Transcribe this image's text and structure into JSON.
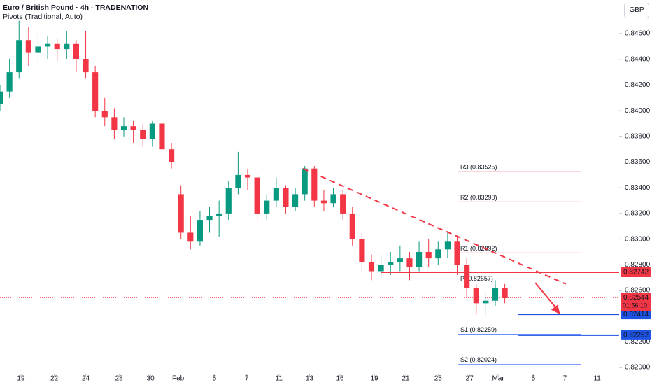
{
  "chart_data": {
    "type": "candlestick",
    "title": "Euro / British Pound · 4h · TRADENATION",
    "indicator": "Pivots (Traditional, Auto)",
    "currency": "GBP",
    "up_color": "#089981",
    "down_color": "#f23645",
    "xlim": [
      0,
      65
    ],
    "ylim": [
      0.81946,
      0.84862
    ],
    "xticks": [
      {
        "value": 2.2,
        "label": "19"
      },
      {
        "value": 5.7,
        "label": "22"
      },
      {
        "value": 9,
        "label": "24"
      },
      {
        "value": 12.5,
        "label": "28"
      },
      {
        "value": 15.8,
        "label": "30"
      },
      {
        "value": 18.7,
        "label": "Feb"
      },
      {
        "value": 22.5,
        "label": "5"
      },
      {
        "value": 25.9,
        "label": "7"
      },
      {
        "value": 29.3,
        "label": "11"
      },
      {
        "value": 32.5,
        "label": "13"
      },
      {
        "value": 35.7,
        "label": "16"
      },
      {
        "value": 39.3,
        "label": "19"
      },
      {
        "value": 42.6,
        "label": "21"
      },
      {
        "value": 46,
        "label": "25"
      },
      {
        "value": 49.3,
        "label": "27"
      },
      {
        "value": 52.3,
        "label": "Mar"
      },
      {
        "value": 56,
        "label": "5"
      },
      {
        "value": 59.3,
        "label": "7"
      },
      {
        "value": 62.7,
        "label": "11"
      }
    ],
    "yticks": [
      {
        "value": 0.846,
        "label": "0.84600"
      },
      {
        "value": 0.844,
        "label": "0.84400"
      },
      {
        "value": 0.842,
        "label": "0.84200"
      },
      {
        "value": 0.84,
        "label": "0.84000"
      },
      {
        "value": 0.838,
        "label": "0.83800"
      },
      {
        "value": 0.836,
        "label": "0.83600"
      },
      {
        "value": 0.834,
        "label": "0.83400"
      },
      {
        "value": 0.832,
        "label": "0.83200"
      },
      {
        "value": 0.83,
        "label": "0.83000"
      },
      {
        "value": 0.828,
        "label": "0.82800"
      },
      {
        "value": 0.826,
        "label": "0.82600"
      },
      {
        "value": 0.822,
        "label": "0.82200"
      },
      {
        "value": 0.82,
        "label": "0.82000"
      }
    ],
    "candles": [
      [
        0.8405,
        0.842,
        0.84,
        0.8415
      ],
      [
        0.8415,
        0.844,
        0.841,
        0.843
      ],
      [
        0.843,
        0.847,
        0.8425,
        0.8455
      ],
      [
        0.8455,
        0.8465,
        0.8435,
        0.8445
      ],
      [
        0.8445,
        0.8462,
        0.8438,
        0.845
      ],
      [
        0.845,
        0.8458,
        0.844,
        0.8452
      ],
      [
        0.8452,
        0.8456,
        0.8438,
        0.8448
      ],
      [
        0.8448,
        0.8462,
        0.844,
        0.8452
      ],
      [
        0.8452,
        0.8455,
        0.843,
        0.844
      ],
      [
        0.844,
        0.8462,
        0.8425,
        0.843
      ],
      [
        0.843,
        0.8435,
        0.8395,
        0.84
      ],
      [
        0.84,
        0.841,
        0.8388,
        0.8395
      ],
      [
        0.8395,
        0.8402,
        0.8378,
        0.8385
      ],
      [
        0.8385,
        0.8395,
        0.838,
        0.8388
      ],
      [
        0.8388,
        0.8392,
        0.8375,
        0.8385
      ],
      [
        0.8385,
        0.839,
        0.8372,
        0.8378
      ],
      [
        0.8378,
        0.8392,
        0.8372,
        0.839
      ],
      [
        0.839,
        0.8392,
        0.8365,
        0.837
      ],
      [
        0.837,
        0.8375,
        0.8355,
        0.836
      ],
      [
        0.8335,
        0.8342,
        0.83,
        0.8305
      ],
      [
        0.8305,
        0.8318,
        0.8292,
        0.8298
      ],
      [
        0.8298,
        0.8322,
        0.8295,
        0.8315
      ],
      [
        0.8315,
        0.8325,
        0.8305,
        0.8318
      ],
      [
        0.8318,
        0.833,
        0.8302,
        0.832
      ],
      [
        0.832,
        0.8345,
        0.8315,
        0.834
      ],
      [
        0.834,
        0.8368,
        0.8335,
        0.835
      ],
      [
        0.835,
        0.8355,
        0.8338,
        0.8348
      ],
      [
        0.8348,
        0.835,
        0.8315,
        0.832
      ],
      [
        0.832,
        0.8335,
        0.8315,
        0.833
      ],
      [
        0.833,
        0.8348,
        0.8325,
        0.834
      ],
      [
        0.834,
        0.8342,
        0.832,
        0.8325
      ],
      [
        0.8325,
        0.834,
        0.8322,
        0.8335
      ],
      [
        0.8335,
        0.8357,
        0.833,
        0.8355
      ],
      [
        0.8355,
        0.8357,
        0.8325,
        0.833
      ],
      [
        0.833,
        0.8338,
        0.8322,
        0.8328
      ],
      [
        0.8328,
        0.834,
        0.8325,
        0.8335
      ],
      [
        0.8335,
        0.8338,
        0.8315,
        0.832
      ],
      [
        0.832,
        0.8325,
        0.8295,
        0.83
      ],
      [
        0.83,
        0.8305,
        0.8275,
        0.8282
      ],
      [
        0.8282,
        0.8288,
        0.8268,
        0.8275
      ],
      [
        0.8275,
        0.8288,
        0.827,
        0.828
      ],
      [
        0.828,
        0.829,
        0.8272,
        0.8282
      ],
      [
        0.8282,
        0.8295,
        0.8275,
        0.8285
      ],
      [
        0.8285,
        0.829,
        0.8268,
        0.8278
      ],
      [
        0.8278,
        0.8298,
        0.8275,
        0.829
      ],
      [
        0.829,
        0.83,
        0.8278,
        0.8285
      ],
      [
        0.8285,
        0.8298,
        0.828,
        0.8292
      ],
      [
        0.8292,
        0.8305,
        0.8285,
        0.8298
      ],
      [
        0.8298,
        0.8302,
        0.8272,
        0.828
      ],
      [
        0.828,
        0.8285,
        0.8255,
        0.8262
      ],
      [
        0.8262,
        0.8265,
        0.8242,
        0.825
      ],
      [
        0.825,
        0.8258,
        0.824,
        0.8252
      ],
      [
        0.8252,
        0.8268,
        0.8248,
        0.8262
      ],
      [
        0.8262,
        0.8265,
        0.825,
        0.8254
      ]
    ],
    "pivots": [
      {
        "label": "R3 (0.83525)",
        "value": 0.83525,
        "color": "#f23645"
      },
      {
        "label": "R2 (0.83290)",
        "value": 0.8329,
        "color": "#f23645"
      },
      {
        "label": "R1 (0.82892)",
        "value": 0.82892,
        "color": "#f23645"
      },
      {
        "label": "P (0.82657)",
        "value": 0.82657,
        "color": "#4caf50"
      },
      {
        "label": "S1 (0.82259)",
        "value": 0.82259,
        "color": "#2962ff"
      },
      {
        "label": "S2 (0.82024)",
        "value": 0.82024,
        "color": "#2962ff"
      }
    ],
    "levels": [
      {
        "value": 0.82742,
        "label": "0.82742",
        "color": "#f23645"
      },
      {
        "value": 0.82414,
        "label": "0.82414",
        "color": "#1e53e5"
      },
      {
        "value": 0.82252,
        "label": "0.82252",
        "color": "#1e53e5"
      }
    ],
    "current_price": {
      "value": 0.82544,
      "label": "0.82544",
      "countdown": "01:56:10",
      "color": "#f23645"
    },
    "trendline": {
      "x": [
        31.8,
        59.4
      ],
      "y": [
        0.8355,
        0.8265
      ],
      "color": "#f23645"
    },
    "arrow": {
      "x": [
        56.2,
        58.8
      ],
      "y": [
        0.8266,
        0.82414
      ],
      "color": "#f23645"
    }
  }
}
